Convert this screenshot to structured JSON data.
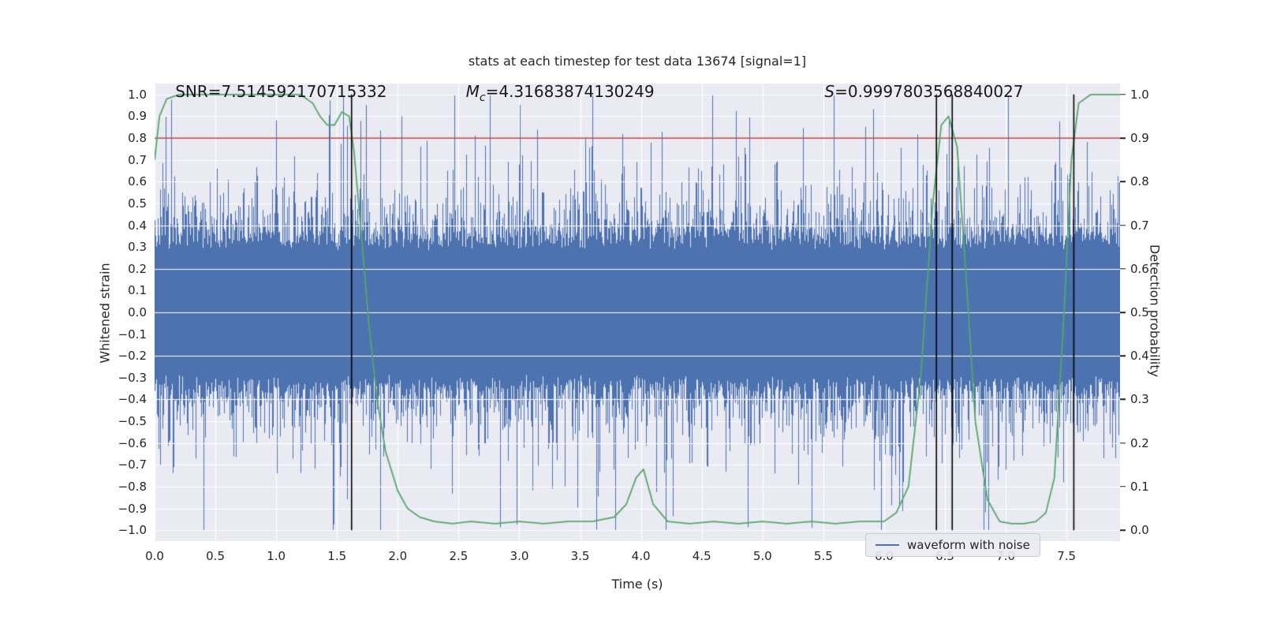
{
  "figure": {
    "background": "#ffffff"
  },
  "chart_data": {
    "type": "line",
    "title": "stats at each timestep for test data 13674 [signal=1]",
    "xlabel": "Time (s)",
    "ylabel_left": "Whitened strain",
    "ylabel_right": "Detection probability",
    "xlim": [
      0.0,
      7.94
    ],
    "ylim_left": [
      -1.05,
      1.05
    ],
    "ylim_right": [
      -0.025,
      1.025
    ],
    "x_ticks": [
      0.0,
      0.5,
      1.0,
      1.5,
      2.0,
      2.5,
      3.0,
      3.5,
      4.0,
      4.5,
      5.0,
      5.5,
      6.0,
      6.5,
      7.0,
      7.5
    ],
    "y_ticks_left": [
      -1.0,
      -0.9,
      -0.8,
      -0.7,
      -0.6,
      -0.5,
      -0.4,
      -0.3,
      -0.2,
      -0.1,
      0.0,
      0.1,
      0.2,
      0.3,
      0.4,
      0.5,
      0.6,
      0.7,
      0.8,
      0.9,
      1.0
    ],
    "y_ticks_right": [
      0.0,
      0.1,
      0.2,
      0.3,
      0.4,
      0.5,
      0.6,
      0.7,
      0.8,
      0.9,
      1.0
    ],
    "grid": true,
    "axes_background": "#eaeaf2",
    "grid_color": "#ffffff",
    "text_color": "#262626",
    "annotations": [
      {
        "prefix": "SNR",
        "sub": "",
        "suffix": "=7.514592170715332",
        "italic_prefix": false,
        "x": 0.17,
        "y": 1.0
      },
      {
        "prefix": "M",
        "sub": "c",
        "suffix": "=4.31683874130249",
        "italic_prefix": true,
        "x": 2.56,
        "y": 1.0
      },
      {
        "prefix": "S",
        "sub": "",
        "suffix": "=0.9997803568840027",
        "italic_prefix": true,
        "x": 5.51,
        "y": 1.0
      }
    ],
    "threshold_line": {
      "axis": "right",
      "value": 0.9,
      "color": "#b22222"
    },
    "event_lines": {
      "x": [
        1.62,
        6.43,
        6.56,
        7.56
      ],
      "y_extent": [
        -1.0,
        1.0
      ],
      "color": "#000000"
    },
    "series": [
      {
        "name": "waveform with noise",
        "kind": "noise",
        "axis": "left",
        "color": "#4c72b0",
        "seed": 13674,
        "core_amplitude": 0.31,
        "max_amplitude": 1.0
      },
      {
        "name": "detection probability",
        "kind": "line",
        "axis": "right",
        "color": "#55a868",
        "x": [
          0.0,
          0.04,
          0.1,
          0.2,
          0.4,
          0.7,
          1.0,
          1.2,
          1.3,
          1.36,
          1.42,
          1.48,
          1.54,
          1.6,
          1.64,
          1.7,
          1.76,
          1.83,
          1.9,
          2.0,
          2.08,
          2.18,
          2.3,
          2.45,
          2.6,
          2.8,
          3.0,
          3.2,
          3.4,
          3.6,
          3.78,
          3.88,
          3.96,
          4.02,
          4.1,
          4.22,
          4.4,
          4.6,
          4.8,
          5.0,
          5.2,
          5.4,
          5.6,
          5.8,
          6.0,
          6.1,
          6.2,
          6.3,
          6.4,
          6.47,
          6.53,
          6.6,
          6.67,
          6.75,
          6.85,
          6.95,
          7.05,
          7.15,
          7.25,
          7.33,
          7.4,
          7.48,
          7.54,
          7.6,
          7.7,
          7.82,
          7.94
        ],
        "y": [
          0.85,
          0.95,
          0.99,
          1.0,
          1.0,
          1.0,
          1.0,
          1.0,
          0.98,
          0.95,
          0.93,
          0.93,
          0.96,
          0.95,
          0.87,
          0.68,
          0.48,
          0.3,
          0.18,
          0.09,
          0.05,
          0.03,
          0.02,
          0.015,
          0.02,
          0.015,
          0.02,
          0.015,
          0.02,
          0.02,
          0.03,
          0.06,
          0.12,
          0.14,
          0.06,
          0.02,
          0.015,
          0.02,
          0.015,
          0.02,
          0.015,
          0.02,
          0.015,
          0.02,
          0.02,
          0.04,
          0.1,
          0.35,
          0.75,
          0.93,
          0.95,
          0.88,
          0.6,
          0.25,
          0.07,
          0.02,
          0.015,
          0.015,
          0.02,
          0.04,
          0.12,
          0.5,
          0.85,
          0.98,
          1.0,
          1.0,
          1.0
        ]
      }
    ],
    "legend": {
      "entries": [
        "waveform with noise"
      ],
      "position": "lower right"
    }
  }
}
